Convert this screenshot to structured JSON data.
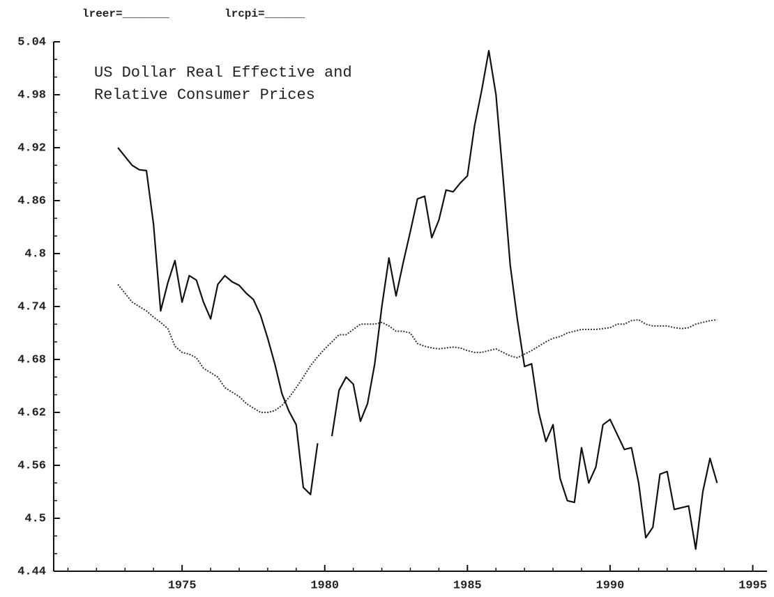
{
  "header_labels": [
    "lreer=_______",
    "lrcpi=______"
  ],
  "chart_data": {
    "type": "line",
    "title_lines": [
      "US Dollar Real Effective and",
      "Relative Consumer Prices"
    ],
    "x": [
      1972.75,
      1973,
      1973.25,
      1973.5,
      1973.75,
      1974,
      1974.25,
      1974.5,
      1974.75,
      1975,
      1975.25,
      1975.5,
      1975.75,
      1976,
      1976.25,
      1976.5,
      1976.75,
      1977,
      1977.25,
      1977.5,
      1977.75,
      1978,
      1978.25,
      1978.5,
      1978.75,
      1979,
      1979.25,
      1979.5,
      1979.75,
      1980,
      1980.25,
      1980.5,
      1980.75,
      1981,
      1981.25,
      1981.5,
      1981.75,
      1982,
      1982.25,
      1982.5,
      1982.75,
      1983,
      1983.25,
      1983.5,
      1983.75,
      1984,
      1984.25,
      1984.5,
      1984.75,
      1985,
      1985.25,
      1985.5,
      1985.75,
      1986,
      1986.25,
      1986.5,
      1986.75,
      1987,
      1987.25,
      1987.5,
      1987.75,
      1988,
      1988.25,
      1988.5,
      1988.75,
      1989,
      1989.25,
      1989.5,
      1989.75,
      1990,
      1990.25,
      1990.5,
      1990.75,
      1991,
      1991.25,
      1991.5,
      1991.75,
      1992,
      1992.25,
      1992.5,
      1992.75,
      1993,
      1993.25,
      1993.5,
      1993.75
    ],
    "series": [
      {
        "color": "#111",
        "style": "solid",
        "values": [
          4.92,
          4.91,
          4.9,
          4.895,
          4.894,
          4.833,
          4.735,
          4.767,
          4.792,
          4.745,
          4.775,
          4.77,
          4.745,
          4.726,
          4.765,
          4.775,
          4.768,
          4.764,
          4.755,
          4.748,
          4.73,
          4.704,
          4.675,
          4.641,
          4.621,
          4.606,
          4.535,
          4.527,
          4.585,
          null,
          4.593,
          4.645,
          4.66,
          4.652,
          4.61,
          4.63,
          4.675,
          4.74,
          4.795,
          4.752,
          4.79,
          4.825,
          4.862,
          4.865,
          4.818,
          4.838,
          4.872,
          4.87,
          4.88,
          4.888,
          4.945,
          4.985,
          5.03,
          4.98,
          4.886,
          4.787,
          4.725,
          4.672,
          4.675,
          4.62,
          4.587,
          4.606,
          4.545,
          4.52,
          4.518,
          4.58,
          4.54,
          4.558,
          4.606,
          4.612,
          4.595,
          4.578,
          4.58,
          4.54,
          4.478,
          4.49,
          4.55,
          4.553,
          4.51,
          4.512,
          4.514,
          4.465,
          4.53,
          4.568,
          4.54
        ]
      },
      {
        "color": "#333",
        "style": "dotted",
        "values": [
          4.765,
          4.755,
          4.745,
          4.74,
          4.735,
          4.728,
          4.722,
          4.715,
          4.695,
          4.688,
          4.686,
          4.682,
          4.67,
          4.665,
          4.66,
          4.648,
          4.643,
          4.638,
          4.63,
          4.625,
          4.62,
          4.62,
          4.622,
          4.628,
          4.637,
          4.648,
          4.66,
          4.673,
          4.683,
          4.692,
          4.7,
          4.708,
          4.708,
          4.714,
          4.72,
          4.72,
          4.72,
          4.722,
          4.718,
          4.712,
          4.712,
          4.71,
          4.698,
          4.695,
          4.693,
          4.692,
          4.693,
          4.694,
          4.693,
          4.69,
          4.688,
          4.688,
          4.69,
          4.692,
          4.688,
          4.684,
          4.682,
          4.686,
          4.69,
          4.695,
          4.7,
          4.704,
          4.706,
          4.71,
          4.712,
          4.714,
          4.714,
          4.714,
          4.715,
          4.716,
          4.72,
          4.72,
          4.724,
          4.725,
          4.72,
          4.718,
          4.718,
          4.718,
          4.716,
          4.715,
          4.716,
          4.72,
          4.722,
          4.724,
          4.725
        ]
      }
    ],
    "xlim": [
      1970.5,
      1995.5
    ],
    "xticks": [
      1975,
      1980,
      1985,
      1990,
      1995
    ],
    "xminorticks": [
      1971,
      1972,
      1973,
      1974,
      1976,
      1977,
      1978,
      1979,
      1981,
      1982,
      1983,
      1984,
      1986,
      1987,
      1988,
      1989,
      1991,
      1992,
      1993,
      1994
    ],
    "ylim": [
      4.44,
      5.04
    ],
    "yticks": [
      4.44,
      4.5,
      4.56,
      4.62,
      4.68,
      4.74,
      4.8,
      4.86,
      4.92,
      4.98,
      5.04
    ],
    "yminorticks": [
      4.46,
      4.48,
      4.52,
      4.54,
      4.58,
      4.6,
      4.64,
      4.66,
      4.7,
      4.72,
      4.76,
      4.78,
      4.82,
      4.84,
      4.88,
      4.9,
      4.94,
      4.96,
      5.0,
      5.02
    ]
  }
}
